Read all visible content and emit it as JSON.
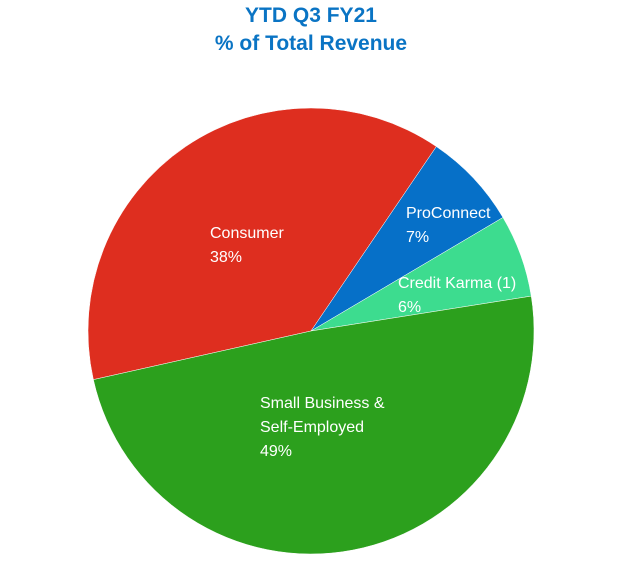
{
  "chart_data": {
    "type": "pie",
    "title": "YTD Q3 FY21",
    "subtitle": "% of Total Revenue",
    "categories": [
      "Consumer",
      "ProConnect",
      "Credit Karma (1)",
      "Small Business & Self-Employed"
    ],
    "values": [
      38,
      7,
      6,
      49
    ],
    "value_labels": [
      "38%",
      "7%",
      "6%",
      "49%"
    ],
    "colors": [
      "#de2e1f",
      "#0670c8",
      "#3ddc8f",
      "#2ca01d"
    ]
  }
}
